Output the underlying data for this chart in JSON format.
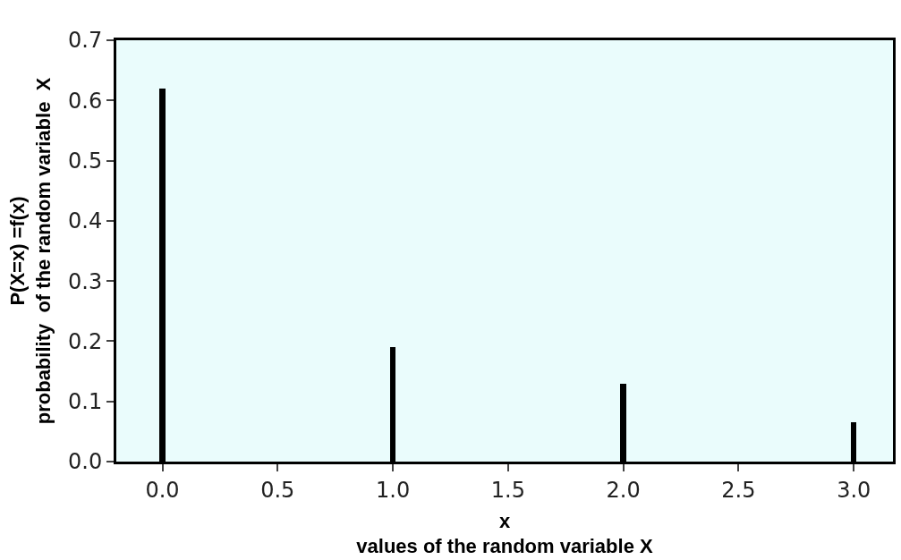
{
  "chart_data": {
    "type": "bar",
    "xlabel": "x\nvalues of the random variable X",
    "ylabel": "P(X=x) =f(x)\nprobability  of the random variable  X",
    "x": [
      0,
      1,
      2,
      3
    ],
    "values": [
      0.62,
      0.19,
      0.13,
      0.065
    ],
    "color": "#000000",
    "xlim": [
      -0.2,
      3.17
    ],
    "xticks": [
      {
        "value": 0,
        "label": "0.0"
      },
      {
        "value": 0.5,
        "label": "0.5"
      },
      {
        "value": 1,
        "label": "1.0"
      },
      {
        "value": 1.5,
        "label": "1.5"
      },
      {
        "value": 2,
        "label": "2.0"
      },
      {
        "value": 2.5,
        "label": "2.5"
      },
      {
        "value": 3,
        "label": "3.0"
      }
    ],
    "ylim": [
      0,
      0.7
    ],
    "yticks": [
      {
        "value": 0,
        "label": "0.0"
      },
      {
        "value": 0.1,
        "label": "0.1"
      },
      {
        "value": 0.2,
        "label": "0.2"
      },
      {
        "value": 0.3,
        "label": "0.3"
      },
      {
        "value": 0.4,
        "label": "0.4"
      },
      {
        "value": 0.5,
        "label": "0.5"
      },
      {
        "value": 0.6,
        "label": "0.6"
      },
      {
        "value": 0.7,
        "label": "0.7"
      }
    ],
    "grid": false
  }
}
